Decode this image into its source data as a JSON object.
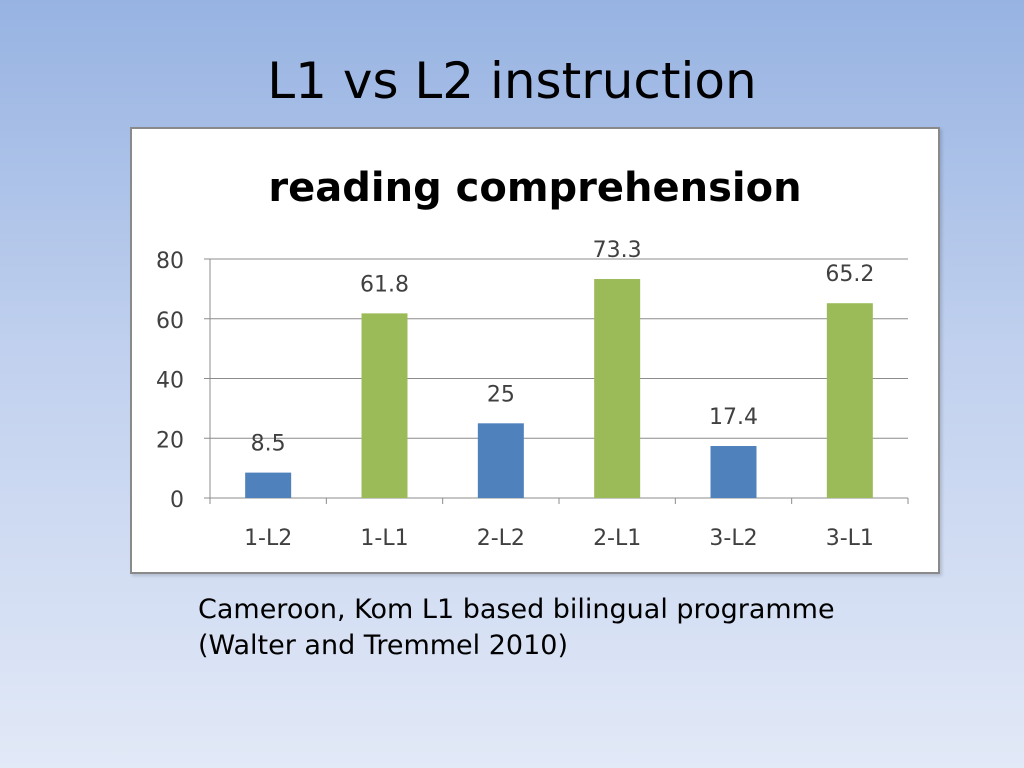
{
  "slide": {
    "title": "L1 vs L2 instruction",
    "caption_line1": "Cameroon, Kom L1 based bilingual programme",
    "caption_line2": "(Walter and Tremmel 2010)"
  },
  "colors": {
    "l2_bar": "#4f81bd",
    "l1_bar": "#9bbb59",
    "gridline": "#8c8c8c",
    "text": "#404040"
  },
  "chart_data": {
    "type": "bar",
    "title": "reading comprehension",
    "categories": [
      "1-L2",
      "1-L1",
      "2-L2",
      "2-L1",
      "3-L2",
      "3-L1"
    ],
    "values": [
      8.5,
      61.8,
      25,
      73.3,
      17.4,
      65.2
    ],
    "data_labels": [
      "8.5",
      "61.8",
      "25",
      "73.3",
      "17.4",
      "65.2"
    ],
    "bar_colors": [
      "#4f81bd",
      "#9bbb59",
      "#4f81bd",
      "#9bbb59",
      "#4f81bd",
      "#9bbb59"
    ],
    "ylim": [
      0,
      80
    ],
    "yticks": [
      0,
      20,
      40,
      60,
      80
    ],
    "grid": true,
    "legend": "none",
    "xlabel": "",
    "ylabel": ""
  }
}
